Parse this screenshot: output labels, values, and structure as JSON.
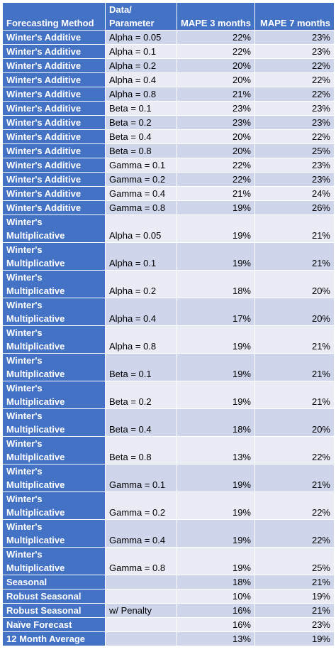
{
  "header": {
    "method": "Forecasting Method",
    "param_line1": "Data/",
    "param_line2": "Parameter",
    "mape3": "MAPE 3 months",
    "mape7": "MAPE 7 months"
  },
  "rows": [
    {
      "method": [
        "Winter's Additive"
      ],
      "param": "Alpha = 0.05",
      "mape3": "22%",
      "mape7": "23%"
    },
    {
      "method": [
        "Winter's Additive"
      ],
      "param": "Alpha = 0.1",
      "mape3": "22%",
      "mape7": "23%"
    },
    {
      "method": [
        "Winter's Additive"
      ],
      "param": "Alpha = 0.2",
      "mape3": "20%",
      "mape7": "22%"
    },
    {
      "method": [
        "Winter's Additive"
      ],
      "param": "Alpha = 0.4",
      "mape3": "20%",
      "mape7": "22%"
    },
    {
      "method": [
        "Winter's Additive"
      ],
      "param": "Alpha = 0.8",
      "mape3": "21%",
      "mape7": "22%"
    },
    {
      "method": [
        "Winter's Additive"
      ],
      "param": "Beta = 0.1",
      "mape3": "23%",
      "mape7": "23%"
    },
    {
      "method": [
        "Winter's Additive"
      ],
      "param": "Beta = 0.2",
      "mape3": "23%",
      "mape7": "23%"
    },
    {
      "method": [
        "Winter's Additive"
      ],
      "param": "Beta = 0.4",
      "mape3": "20%",
      "mape7": "22%"
    },
    {
      "method": [
        "Winter's Additive"
      ],
      "param": "Beta = 0.8",
      "mape3": "20%",
      "mape7": "25%"
    },
    {
      "method": [
        "Winter's Additive"
      ],
      "param": "Gamma = 0.1",
      "mape3": "22%",
      "mape7": "23%"
    },
    {
      "method": [
        "Winter's Additive"
      ],
      "param": "Gamma = 0.2",
      "mape3": "22%",
      "mape7": "23%"
    },
    {
      "method": [
        "Winter's Additive"
      ],
      "param": "Gamma = 0.4",
      "mape3": "21%",
      "mape7": "24%"
    },
    {
      "method": [
        "Winter's Additive"
      ],
      "param": "Gamma = 0.8",
      "mape3": "19%",
      "mape7": "26%"
    },
    {
      "method": [
        "Winter's",
        "Multiplicative"
      ],
      "param": "Alpha = 0.05",
      "mape3": "19%",
      "mape7": "21%"
    },
    {
      "method": [
        "Winter's",
        "Multiplicative"
      ],
      "param": "Alpha = 0.1",
      "mape3": "19%",
      "mape7": "21%"
    },
    {
      "method": [
        "Winter's",
        "Multiplicative"
      ],
      "param": "Alpha = 0.2",
      "mape3": "18%",
      "mape7": "20%"
    },
    {
      "method": [
        "Winter's",
        "Multiplicative"
      ],
      "param": "Alpha = 0.4",
      "mape3": "17%",
      "mape7": "20%"
    },
    {
      "method": [
        "Winter's",
        "Multiplicative"
      ],
      "param": "Alpha = 0.8",
      "mape3": "19%",
      "mape7": "21%"
    },
    {
      "method": [
        "Winter's",
        "Multiplicative"
      ],
      "param": "Beta = 0.1",
      "mape3": "19%",
      "mape7": "21%"
    },
    {
      "method": [
        "Winter's",
        "Multiplicative"
      ],
      "param": "Beta = 0.2",
      "mape3": "19%",
      "mape7": "21%"
    },
    {
      "method": [
        "Winter's",
        "Multiplicative"
      ],
      "param": "Beta = 0.4",
      "mape3": "18%",
      "mape7": "20%"
    },
    {
      "method": [
        "Winter's",
        "Multiplicative"
      ],
      "param": "Beta = 0.8",
      "mape3": "13%",
      "mape7": "22%"
    },
    {
      "method": [
        "Winter's",
        "Multiplicative"
      ],
      "param": "Gamma = 0.1",
      "mape3": "19%",
      "mape7": "21%"
    },
    {
      "method": [
        "Winter's",
        "Multiplicative"
      ],
      "param": "Gamma = 0.2",
      "mape3": "19%",
      "mape7": "22%"
    },
    {
      "method": [
        "Winter's",
        "Multiplicative"
      ],
      "param": "Gamma = 0.4",
      "mape3": "19%",
      "mape7": "22%"
    },
    {
      "method": [
        "Winter's",
        "Multiplicative"
      ],
      "param": "Gamma = 0.8",
      "mape3": "19%",
      "mape7": "25%"
    },
    {
      "method": [
        "Seasonal"
      ],
      "param": "",
      "mape3": "18%",
      "mape7": "21%"
    },
    {
      "method": [
        "Robust Seasonal"
      ],
      "param": "",
      "mape3": "10%",
      "mape7": "19%"
    },
    {
      "method": [
        "Robust Seasonal"
      ],
      "param": "w/ Penalty",
      "mape3": "16%",
      "mape7": "21%"
    },
    {
      "method": [
        "Naïve Forecast"
      ],
      "param": "",
      "mape3": "16%",
      "mape7": "23%"
    },
    {
      "method": [
        "12 Month Average"
      ],
      "param": "",
      "mape3": "13%",
      "mape7": "19%"
    }
  ],
  "colors": {
    "header_bg": "#4472c4",
    "row_band_dark": "#cfd5ea",
    "row_band_light": "#e9ebf5"
  }
}
